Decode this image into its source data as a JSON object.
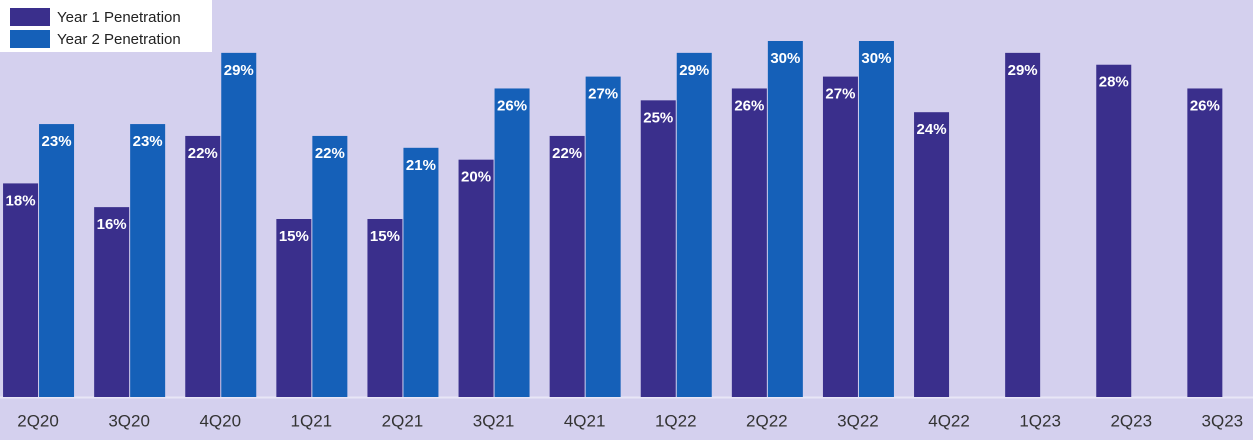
{
  "chart_data": {
    "type": "bar",
    "categories": [
      "2Q20",
      "3Q20",
      "4Q20",
      "1Q21",
      "2Q21",
      "3Q21",
      "4Q21",
      "1Q22",
      "2Q22",
      "3Q22",
      "4Q22",
      "1Q23",
      "2Q23",
      "3Q23"
    ],
    "series": [
      {
        "name": "Year 1 Penetration",
        "color": "#3a2f8c",
        "values": [
          18,
          16,
          22,
          15,
          15,
          20,
          22,
          25,
          26,
          27,
          24,
          29,
          28,
          26
        ],
        "value_labels": [
          "18%",
          "16%",
          "22%",
          "15%",
          "15%",
          "20%",
          "22%",
          "25%",
          "26%",
          "27%",
          "24%",
          "29%",
          "28%",
          "26%"
        ]
      },
      {
        "name": "Year 2 Penetration",
        "color": "#1560b8",
        "values": [
          23,
          23,
          29,
          22,
          21,
          26,
          27,
          29,
          30,
          30,
          null,
          null,
          null,
          null
        ],
        "value_labels": [
          "23%",
          "23%",
          "29%",
          "22%",
          "21%",
          "26%",
          "27%",
          "29%",
          "30%",
          "30%",
          null,
          null,
          null,
          null
        ]
      }
    ],
    "ylim": [
      0,
      30
    ],
    "legend": "top-left"
  }
}
